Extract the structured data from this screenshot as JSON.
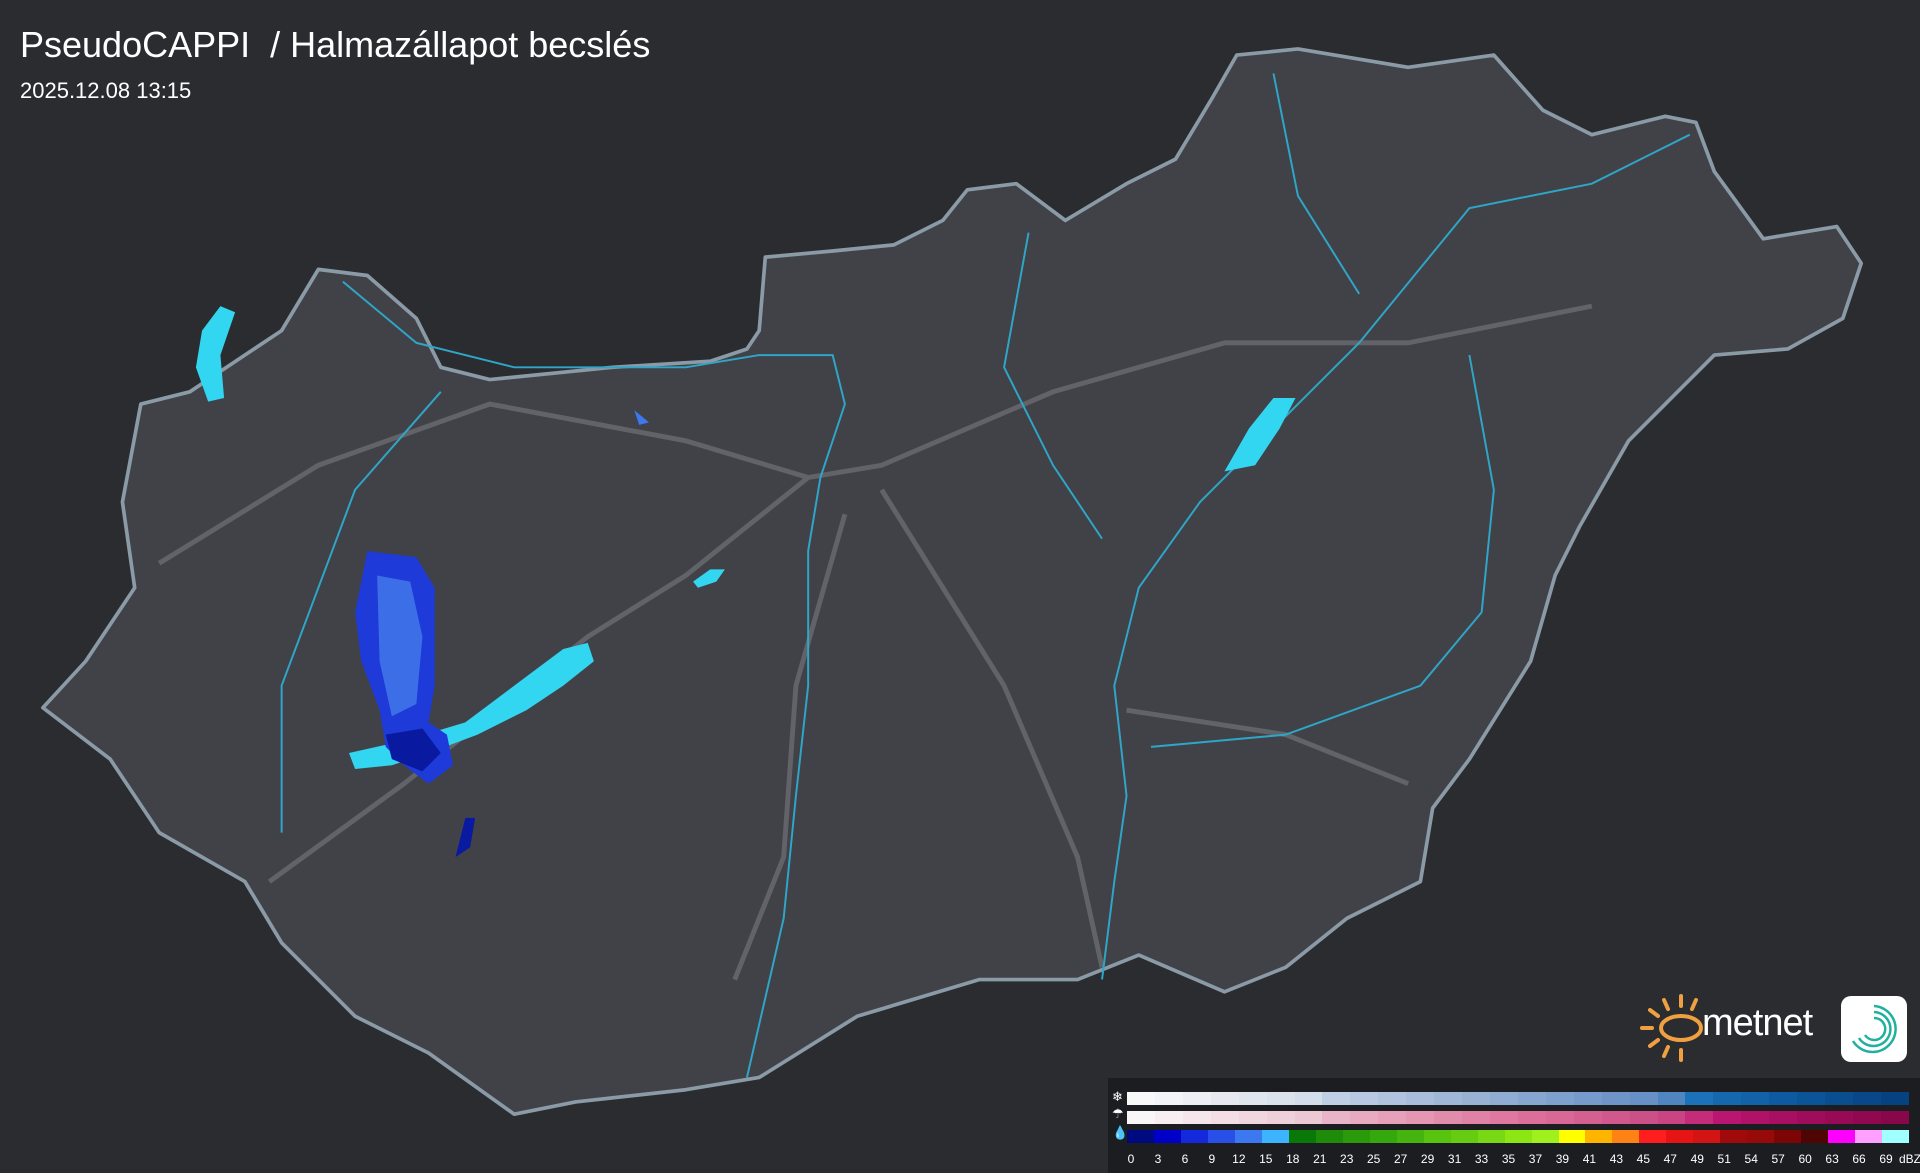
{
  "header": {
    "title": "PseudoCAPPI  / Halmazállapot becslés",
    "timestamp": "2025.12.08 13:15"
  },
  "logo": {
    "text": "metnet",
    "sun_color": "#f0a040",
    "mark_color": "#20b0a0"
  },
  "colors": {
    "background": "#2b2c30",
    "country": "#414248",
    "border": "#8a9aa6",
    "rivers": "#2fa6c8",
    "lakes": "#33d6f0"
  },
  "legend": {
    "icons": {
      "snow": "snowflake-icon",
      "mixed": "sleet-icon",
      "rain": "raindrop-icon"
    },
    "ticks": [
      "0",
      "3",
      "6",
      "9",
      "12",
      "15",
      "18",
      "21",
      "23",
      "25",
      "27",
      "29",
      "31",
      "33",
      "35",
      "37",
      "39",
      "41",
      "43",
      "45",
      "47",
      "49",
      "51",
      "54",
      "57",
      "60",
      "63",
      "66",
      "69"
    ],
    "unit": "dBZ",
    "snow_colors": [
      "#f8f8f8",
      "#f2f4f6",
      "#eceff3",
      "#e6eaf0",
      "#e0e6ee",
      "#dae2ec",
      "#d4deea",
      "#c0d0e4",
      "#b8cae2",
      "#b0c4e0",
      "#a8bedc",
      "#a0b8d8",
      "#98b2d4",
      "#90acd2",
      "#86a6d0",
      "#7ea0cc",
      "#769acc",
      "#6e94c8",
      "#6690c6",
      "#4f86c0",
      "#1b72b8",
      "#1668ae",
      "#1262a8",
      "#0e5aa0",
      "#0c5498",
      "#0a4e90",
      "#084888",
      "#064280"
    ],
    "mixed_colors": [
      "#f8f6f7",
      "#f6eef0",
      "#f4e6ea",
      "#f2dee4",
      "#f0d6de",
      "#eed0da",
      "#ecc8d4",
      "#eab4c8",
      "#e8aac0",
      "#e6a0ba",
      "#e496b2",
      "#e28cac",
      "#e082a6",
      "#de78a0",
      "#dc6e9a",
      "#d86896",
      "#d46092",
      "#d0588c",
      "#cc5088",
      "#c84482",
      "#c42c7a",
      "#b81670",
      "#b01268",
      "#a80e62",
      "#a00c5c",
      "#980a56",
      "#900850",
      "#88064a"
    ],
    "rain_colors": [
      "#000a80",
      "#0000c8",
      "#1428dc",
      "#2850e6",
      "#3c78f0",
      "#3cb4ff",
      "#087808",
      "#1e8c0a",
      "#2a9a0a",
      "#34a80c",
      "#46b40e",
      "#58c410",
      "#66cc12",
      "#78d814",
      "#8ce614",
      "#a0f01e",
      "#ffff00",
      "#ffb400",
      "#ff8214",
      "#ff1e1e",
      "#e61414",
      "#d21414",
      "#a00a0a",
      "#960a0a",
      "#7d0505",
      "#500505",
      "#ff00ff",
      "#ffa0ff",
      "#a0ffff"
    ]
  }
}
